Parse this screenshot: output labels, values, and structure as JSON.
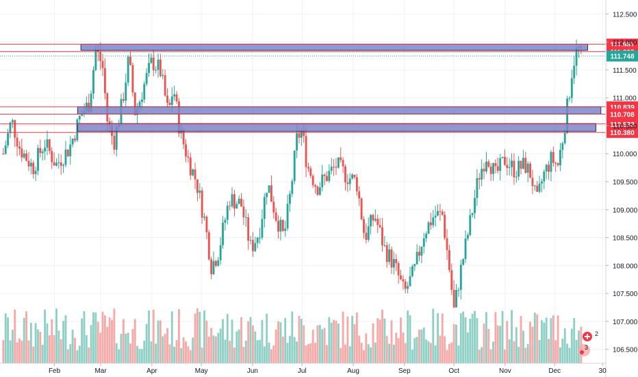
{
  "chart_data": {
    "type": "candlestick",
    "instrument_note": "",
    "xlabel": "",
    "ylabel": "",
    "y_range": [
      106.25,
      112.75
    ],
    "y_ticks": [
      106.5,
      107.0,
      107.5,
      108.0,
      108.5,
      109.0,
      109.5,
      110.0,
      110.5,
      111.0,
      111.5,
      112.0,
      112.5
    ],
    "y_tick_labels": [
      "106.500",
      "107.000",
      "107.500",
      "108.000",
      "108.500",
      "109.000",
      "109.500",
      "110.000",
      "110.500",
      "111.000",
      "111.500",
      "112.000",
      "112.500"
    ],
    "x_tick_labels": [
      {
        "label": "Feb",
        "day": 31
      },
      {
        "label": "Mar",
        "day": 59
      },
      {
        "label": "Apr",
        "day": 90
      },
      {
        "label": "May",
        "day": 120
      },
      {
        "label": "Jun",
        "day": 151
      },
      {
        "label": "Jul",
        "day": 181
      },
      {
        "label": "Aug",
        "day": 212
      },
      {
        "label": "Sep",
        "day": 243
      },
      {
        "label": "Oct",
        "day": 273
      },
      {
        "label": "Nov",
        "day": 304
      },
      {
        "label": "Dec",
        "day": 334
      },
      {
        "label": "30",
        "day": 363
      }
    ],
    "horizontal_levels": [
      {
        "label": "111.961",
        "value": 111.961,
        "color": "#f23645"
      },
      {
        "label": "111.825",
        "value": 111.825,
        "color": "#f23645"
      },
      {
        "label": "110.839",
        "value": 110.839,
        "color": "#f23645"
      },
      {
        "label": "110.708",
        "value": 110.708,
        "color": "#f23645"
      },
      {
        "label": "110.533",
        "value": 110.533,
        "color": "#f23645"
      },
      {
        "label": "110.380",
        "value": 110.38,
        "color": "#f23645"
      }
    ],
    "zones": [
      {
        "top": 111.96,
        "bottom": 111.85,
        "start_day": 47,
        "end_day": 354
      },
      {
        "top": 110.84,
        "bottom": 110.71,
        "start_day": 45,
        "end_day": 362
      },
      {
        "top": 110.54,
        "bottom": 110.4,
        "start_day": 45,
        "end_day": 359
      }
    ],
    "last_price": {
      "label": "111.748",
      "value": 111.748,
      "color": "#26a69a"
    },
    "series": [
      {
        "name": "",
        "keypoints": [
          [
            0,
            110.0
          ],
          [
            5,
            110.6
          ],
          [
            10,
            110.1
          ],
          [
            18,
            109.75
          ],
          [
            25,
            110.2
          ],
          [
            32,
            109.8
          ],
          [
            40,
            110.1
          ],
          [
            47,
            110.7
          ],
          [
            52,
            110.9
          ],
          [
            56,
            111.85
          ],
          [
            60,
            111.6
          ],
          [
            63,
            110.6
          ],
          [
            67,
            110.2
          ],
          [
            72,
            110.9
          ],
          [
            76,
            111.7
          ],
          [
            80,
            110.7
          ],
          [
            85,
            111.2
          ],
          [
            90,
            111.65
          ],
          [
            95,
            111.5
          ],
          [
            100,
            110.7
          ],
          [
            103,
            111.2
          ],
          [
            107,
            110.4
          ],
          [
            112,
            109.9
          ],
          [
            117,
            109.5
          ],
          [
            122,
            108.8
          ],
          [
            126,
            108.0
          ],
          [
            130,
            108.2
          ],
          [
            137,
            109.2
          ],
          [
            144,
            109.1
          ],
          [
            150,
            108.3
          ],
          [
            155,
            108.6
          ],
          [
            160,
            109.5
          ],
          [
            165,
            108.9
          ],
          [
            170,
            108.5
          ],
          [
            174,
            109.3
          ],
          [
            178,
            110.3
          ],
          [
            181,
            110.4
          ],
          [
            184,
            109.8
          ],
          [
            190,
            109.4
          ],
          [
            196,
            109.6
          ],
          [
            202,
            109.8
          ],
          [
            208,
            109.6
          ],
          [
            214,
            109.5
          ],
          [
            219,
            108.5
          ],
          [
            225,
            108.9
          ],
          [
            231,
            108.3
          ],
          [
            237,
            108.0
          ],
          [
            243,
            107.5
          ],
          [
            249,
            107.9
          ],
          [
            255,
            108.6
          ],
          [
            261,
            108.9
          ],
          [
            266,
            108.9
          ],
          [
            270,
            108.0
          ],
          [
            273,
            107.2
          ],
          [
            277,
            107.9
          ],
          [
            283,
            108.8
          ],
          [
            288,
            109.6
          ],
          [
            293,
            110.0
          ],
          [
            298,
            109.6
          ],
          [
            304,
            109.9
          ],
          [
            310,
            109.7
          ],
          [
            316,
            109.8
          ],
          [
            320,
            109.6
          ],
          [
            323,
            109.1
          ],
          [
            327,
            109.6
          ],
          [
            332,
            109.9
          ],
          [
            336,
            109.8
          ],
          [
            339,
            110.3
          ],
          [
            342,
            110.9
          ],
          [
            345,
            111.6
          ],
          [
            348,
            111.9
          ],
          [
            350,
            111.75
          ]
        ]
      }
    ],
    "volume_max": 2.2,
    "volume_panel_label": "",
    "colors": {
      "up": "#26a69a",
      "down": "#ef5350",
      "up_volume": "#8fd0c6",
      "down_volume": "#f7a9a7",
      "zone_fill": "#7b86c9",
      "zone_stroke": "#2a2e6e",
      "grid": "#eef0f3",
      "axis_text": "#131722"
    }
  },
  "widgets": {
    "badge_top_count": "2",
    "badge_bottom_count": "3"
  }
}
